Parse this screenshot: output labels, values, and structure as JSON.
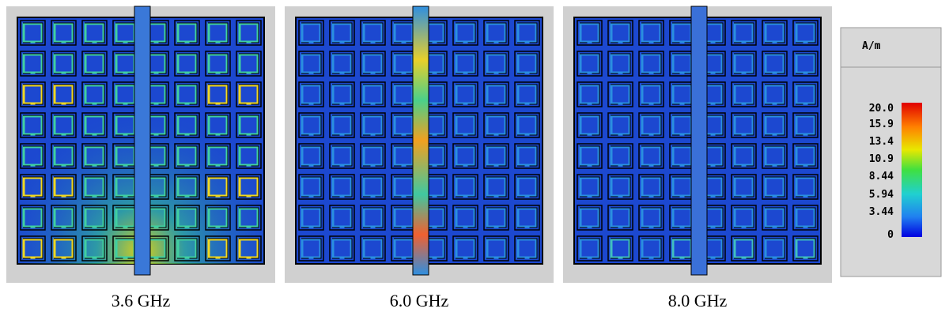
{
  "panels": [
    {
      "label": "3.6 GHz"
    },
    {
      "label": "6.0 GHz"
    },
    {
      "label": "8.0 GHz"
    }
  ],
  "colorbar": {
    "unit": "A/m",
    "ticks": [
      "20.0",
      "15.9",
      "13.4",
      "10.9",
      "8.44",
      "5.94",
      "3.44",
      "0"
    ]
  }
}
